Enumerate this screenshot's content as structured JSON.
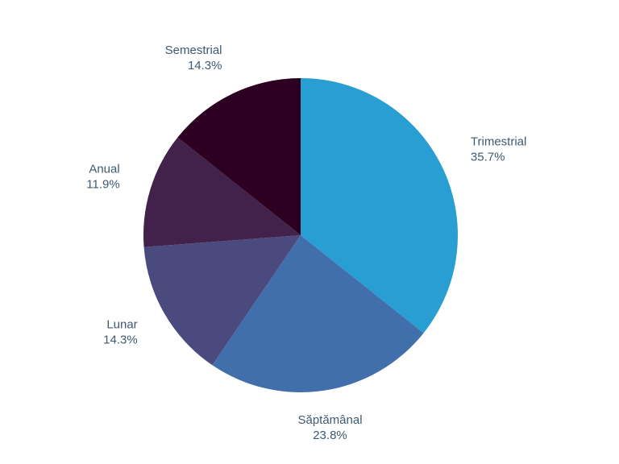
{
  "chart_data": {
    "type": "pie",
    "title": "",
    "start_angle_deg": 0,
    "direction": "clockwise",
    "legend": "none",
    "slices": [
      {
        "label": "Trimestrial",
        "value": 35.7,
        "value_label": "35.7%",
        "color": "#289ed3"
      },
      {
        "label": "Săptămânal",
        "value": 23.8,
        "value_label": "23.8%",
        "color": "#416fac"
      },
      {
        "label": "Lunar",
        "value": 14.3,
        "value_label": "14.3%",
        "color": "#4b4a7e"
      },
      {
        "label": "Anual",
        "value": 11.9,
        "value_label": "11.9%",
        "color": "#42224b"
      },
      {
        "label": "Semestrial",
        "value": 14.3,
        "value_label": "14.3%",
        "color": "#2d0022"
      }
    ],
    "label_color": "#3d5a73"
  }
}
